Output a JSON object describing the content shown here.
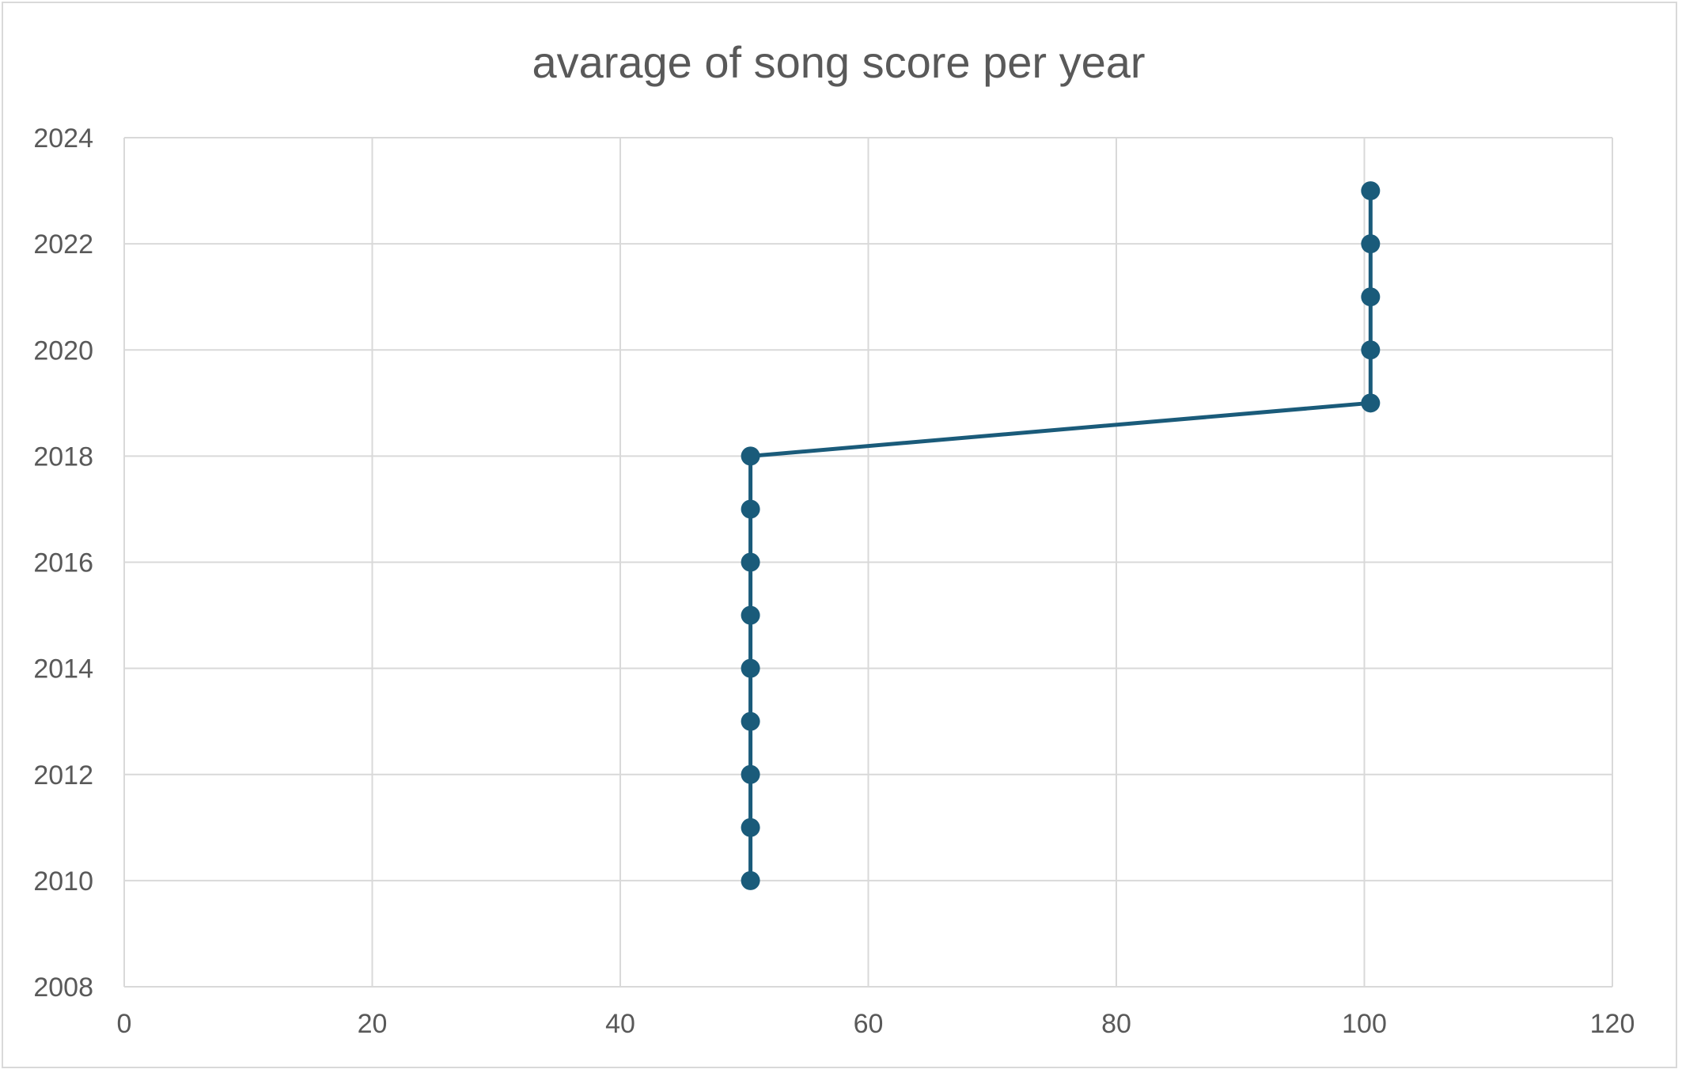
{
  "chart_data": {
    "type": "scatter",
    "title": "avarage of song score per year",
    "xlabel": "",
    "ylabel": "",
    "xlim": [
      0,
      120
    ],
    "ylim": [
      2008,
      2024
    ],
    "x_ticks": [
      "0",
      "20",
      "40",
      "60",
      "80",
      "100",
      "120"
    ],
    "y_ticks": [
      "2008",
      "2010",
      "2012",
      "2014",
      "2016",
      "2018",
      "2020",
      "2022",
      "2024"
    ],
    "grid": true,
    "legend": "none",
    "markers": true,
    "lines": true,
    "series": [
      {
        "color": "#1a5b7a",
        "points": [
          {
            "x": 50.5,
            "y": 2010
          },
          {
            "x": 50.5,
            "y": 2011
          },
          {
            "x": 50.5,
            "y": 2012
          },
          {
            "x": 50.5,
            "y": 2013
          },
          {
            "x": 50.5,
            "y": 2014
          },
          {
            "x": 50.5,
            "y": 2015
          },
          {
            "x": 50.5,
            "y": 2016
          },
          {
            "x": 50.5,
            "y": 2017
          },
          {
            "x": 50.5,
            "y": 2018
          },
          {
            "x": 100.5,
            "y": 2019
          },
          {
            "x": 100.5,
            "y": 2020
          },
          {
            "x": 100.5,
            "y": 2021
          },
          {
            "x": 100.5,
            "y": 2022
          },
          {
            "x": 100.5,
            "y": 2023
          }
        ]
      }
    ]
  },
  "colors": {
    "series": "#1a5b7a",
    "grid": "#d9d9d9",
    "text": "#595959"
  }
}
